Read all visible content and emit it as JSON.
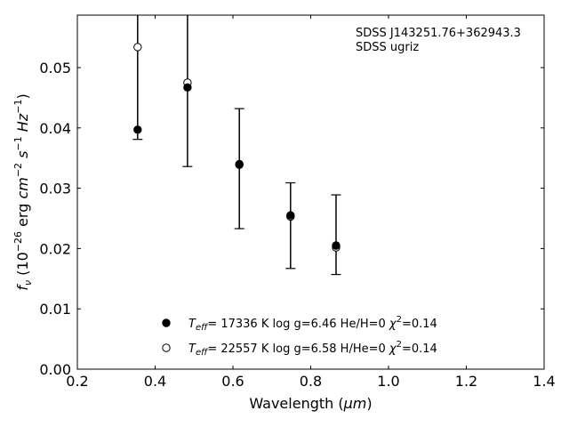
{
  "chart_data": {
    "type": "scatter",
    "xlabel": "Wavelength (",
    "xlabel_unit": "μm",
    "xlabel_close": ")",
    "ylabel_parts": [
      "f",
      "ν",
      " (10",
      "−26",
      " erg ",
      "cm",
      "−2",
      " ",
      "s",
      "−1",
      " ",
      "Hz",
      "−1",
      ")"
    ],
    "xlim": [
      0.2,
      1.4
    ],
    "ylim": [
      0.0,
      0.0587
    ],
    "xticks": [
      0.2,
      0.4,
      0.6,
      0.8,
      1.0,
      1.2,
      1.4
    ],
    "xtick_labels": [
      "0.2",
      "0.4",
      "0.6",
      "0.8",
      "1.0",
      "1.2",
      "1.4"
    ],
    "yticks": [
      0.0,
      0.01,
      0.02,
      0.03,
      0.04,
      0.05
    ],
    "ytick_labels": [
      "0.00",
      "0.01",
      "0.02",
      "0.03",
      "0.04",
      "0.05"
    ],
    "grid": false,
    "annotations": [
      "SDSS J143251.76+362943.3",
      "SDSS ugriz"
    ],
    "observed": {
      "x": [
        0.355,
        0.482,
        0.6165,
        0.7481,
        0.8931
      ],
      "x_plotted": [
        0.355,
        0.4832,
        0.6165,
        0.7481,
        0.8651
      ],
      "y": [
        0.0397,
        0.0467,
        0.034,
        0.0255,
        0.0205
      ],
      "yerr_low": [
        0.0381,
        0.0336,
        0.0233,
        0.0167,
        0.0157
      ],
      "yerr_high": [
        0.06,
        0.06,
        0.0432,
        0.0309,
        0.0289
      ]
    },
    "series": [
      {
        "legend_teff": "T",
        "legend_teff_sub": "eff",
        "legend_text": "= 17336 K  log g=6.46  He/H=0  ",
        "legend_chi": "χ",
        "legend_chi_sup": "2",
        "legend_chi_val": "=0.14",
        "marker": "filled",
        "x": [
          0.355,
          0.4832,
          0.6165,
          0.7481,
          0.8651
        ],
        "y": [
          0.0397,
          0.0467,
          0.034,
          0.0255,
          0.0205
        ]
      },
      {
        "legend_teff": "T",
        "legend_teff_sub": "eff",
        "legend_text": "= 22557 K  log g=6.58  H/He=0  ",
        "legend_chi": "χ",
        "legend_chi_sup": "2",
        "legend_chi_val": "=0.14",
        "marker": "open",
        "x": [
          0.355,
          0.4832,
          0.6165,
          0.7481,
          0.8651
        ],
        "y": [
          0.0534,
          0.0475,
          0.0339,
          0.0253,
          0.0202
        ]
      }
    ],
    "colors": {
      "marker": "#000000",
      "background": "#ffffff"
    }
  }
}
